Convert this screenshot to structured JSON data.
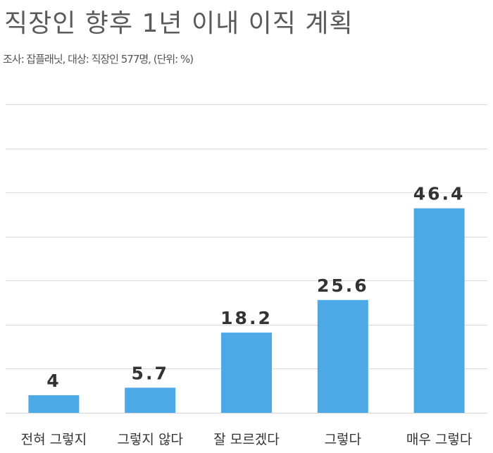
{
  "chart_data": {
    "type": "bar",
    "title": "직장인 향후 1년 이내 이직 계획",
    "subtitle": "조사: 잡플래닛, 대상: 직장인 577명, (단위: %)",
    "categories": [
      "전혀 그렇지",
      "그렇지 않다",
      "잘 모르겠다",
      "그렇다",
      "매우 그렇다"
    ],
    "values": [
      4,
      5.7,
      18.2,
      25.6,
      46.4
    ],
    "value_labels": [
      "4",
      "5.7",
      "18.2",
      "25.6",
      "46.4"
    ],
    "xlabel": "",
    "ylabel": "",
    "ylim": [
      0,
      70
    ],
    "grid": true,
    "bar_color": "#4da8e6",
    "grid_color": "#d9d9d9"
  }
}
